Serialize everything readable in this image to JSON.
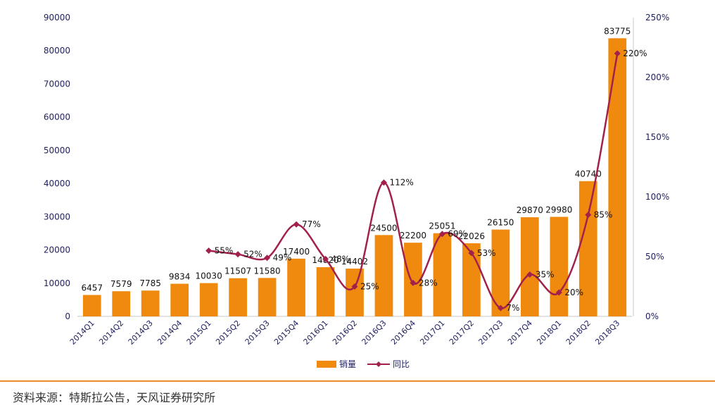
{
  "chart_data": {
    "type": "bar",
    "categories": [
      "2014Q1",
      "2014Q2",
      "2014Q3",
      "2014Q4",
      "2015Q1",
      "2015Q2",
      "2015Q3",
      "2015Q4",
      "2016Q1",
      "2016Q2",
      "2016Q3",
      "2016Q4",
      "2017Q1",
      "2017Q2",
      "2017Q3",
      "2017Q4",
      "2018Q1",
      "2018Q2",
      "2018Q3"
    ],
    "series": [
      {
        "name": "销量",
        "type": "bar",
        "axis": "left",
        "values": [
          6457,
          7579,
          7785,
          9834,
          10030,
          11507,
          11580,
          17400,
          14820,
          14402,
          24500,
          22200,
          25051,
          22026,
          26150,
          29870,
          29980,
          40740,
          83775
        ],
        "labels": [
          "6457",
          "7579",
          "7785",
          "9834",
          "10030",
          "11507",
          "11580",
          "17400",
          "14820",
          "14402",
          "24500",
          "22200",
          "25051",
          "22026",
          "26150",
          "29870",
          "29980",
          "40740",
          "83775"
        ]
      },
      {
        "name": "同比",
        "type": "line",
        "axis": "right",
        "values": [
          null,
          null,
          null,
          null,
          55,
          52,
          49,
          77,
          48,
          25,
          112,
          28,
          69,
          53,
          7,
          35,
          20,
          85,
          220
        ],
        "labels": [
          "",
          "",
          "",
          "",
          "55%",
          "52%",
          "49%",
          "77%",
          "48%",
          "25%",
          "112%",
          "28%",
          "69%",
          "53%",
          "7%",
          "35%",
          "20%",
          "85%",
          "220%"
        ]
      }
    ],
    "y_left": {
      "min": 0,
      "max": 90000,
      "ticks": [
        "0",
        "10000",
        "20000",
        "30000",
        "40000",
        "50000",
        "60000",
        "70000",
        "80000",
        "90000"
      ]
    },
    "y_right": {
      "min": 0,
      "max": 250,
      "ticks": [
        "0%",
        "50%",
        "100%",
        "150%",
        "200%",
        "250%"
      ]
    },
    "grid": false,
    "legend_position": "bottom-center",
    "colors": {
      "bar": "#f08a0f",
      "line": "#a2214a",
      "axis": "#1f1f5f"
    }
  },
  "source_note": "资料来源：特斯拉公告，天风证券研究所"
}
